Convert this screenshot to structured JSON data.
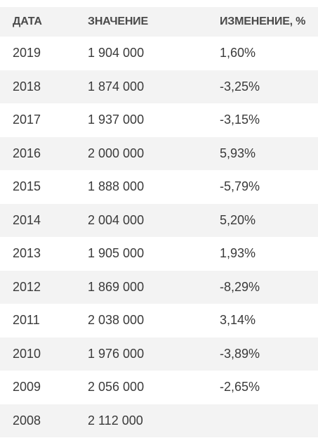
{
  "table": {
    "headers": [
      "ДАТА",
      "ЗНАЧЕНИЕ",
      "ИЗМЕНЕНИЕ, %"
    ],
    "rows": [
      [
        "2019",
        "1 904 000",
        "1,60%"
      ],
      [
        "2018",
        "1 874 000",
        "-3,25%"
      ],
      [
        "2017",
        "1 937 000",
        "-3,15%"
      ],
      [
        "2016",
        "2 000 000",
        "5,93%"
      ],
      [
        "2015",
        "1 888 000",
        "-5,79%"
      ],
      [
        "2014",
        "2 004 000",
        "5,20%"
      ],
      [
        "2013",
        "1 905 000",
        "1,93%"
      ],
      [
        "2012",
        "1 869 000",
        "-8,29%"
      ],
      [
        "2011",
        "2 038 000",
        "3,14%"
      ],
      [
        "2010",
        "1 976 000",
        "-3,89%"
      ],
      [
        "2009",
        "2 056 000",
        "-2,65%"
      ],
      [
        "2008",
        "2 112 000",
        ""
      ]
    ]
  }
}
